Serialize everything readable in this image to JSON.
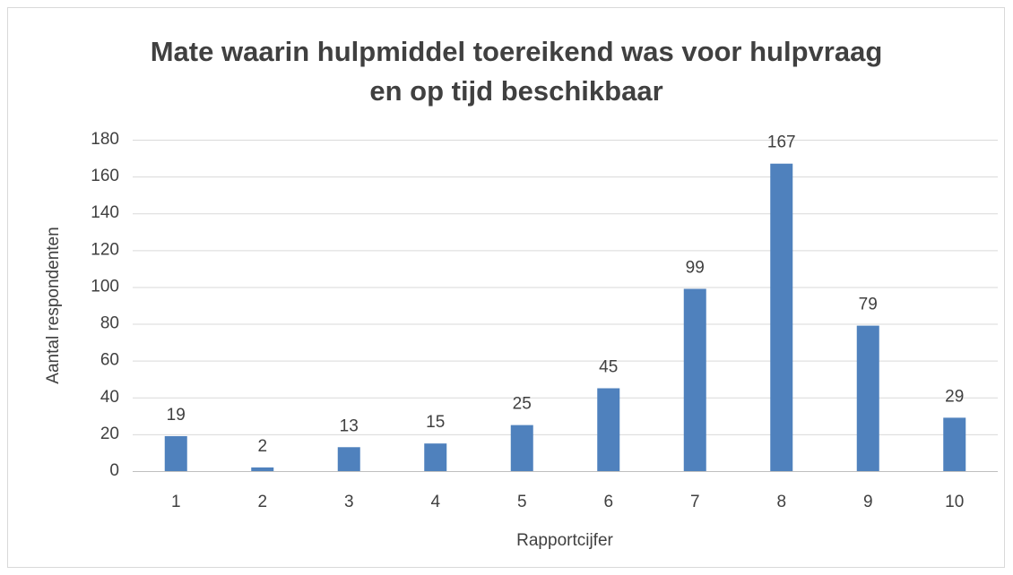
{
  "chart_data": {
    "type": "bar",
    "title": [
      "Mate waarin hulpmiddel toereikend was voor hulpvraag",
      "en op tijd beschikbaar"
    ],
    "x_label": "Rapportcijfer",
    "y_label": "Aantal respondenten",
    "categories": [
      "1",
      "2",
      "3",
      "4",
      "5",
      "6",
      "7",
      "8",
      "9",
      "10"
    ],
    "values": [
      19,
      2,
      13,
      15,
      25,
      45,
      99,
      167,
      79,
      29
    ],
    "color": "#4f81bd",
    "ylim": [
      0,
      180
    ],
    "yticks": [
      0,
      20,
      40,
      60,
      80,
      100,
      120,
      140,
      160,
      180
    ],
    "grid": true
  }
}
